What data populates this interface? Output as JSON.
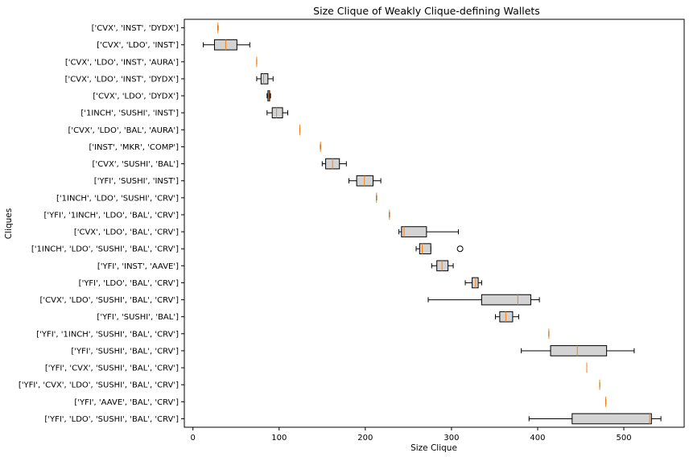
{
  "chart_data": {
    "type": "boxplot",
    "orientation": "horizontal",
    "title": "Size Clique of Weakly Clique-defining Wallets",
    "xlabel": "Size Clique",
    "ylabel": "Cliques",
    "xlim": [
      -10,
      570
    ],
    "xticks": [
      0,
      100,
      200,
      300,
      400,
      500
    ],
    "grid": false,
    "colors": {
      "box_fill": "#d3d3d3",
      "median": "#ff7f0e",
      "whisker": "#000000"
    },
    "categories": [
      "['CVX', 'INST', 'DYDX']",
      "['CVX', 'LDO', 'INST']",
      "['CVX', 'LDO', 'INST', 'AURA']",
      "['CVX', 'LDO', 'INST', 'DYDX']",
      "['CVX', 'LDO', 'DYDX']",
      "['1INCH', 'SUSHI', 'INST']",
      "['CVX', 'LDO', 'BAL', 'AURA']",
      "['INST', 'MKR', 'COMP']",
      "['CVX', 'SUSHI', 'BAL']",
      "['YFI', 'SUSHI', 'INST']",
      "['1INCH', 'LDO', 'SUSHI', 'CRV']",
      "['YFI', '1INCH', 'LDO', 'BAL', 'CRV']",
      "['CVX', 'LDO', 'BAL', 'CRV']",
      "['1INCH', 'LDO', 'SUSHI', 'BAL', 'CRV']",
      "['YFI', 'INST', 'AAVE']",
      "['YFI', 'LDO', 'BAL', 'CRV']",
      "['CVX', 'LDO', 'SUSHI', 'BAL', 'CRV']",
      "['YFI', 'SUSHI', 'BAL']",
      "['YFI', '1INCH', 'SUSHI', 'BAL', 'CRV']",
      "['YFI', 'SUSHI', 'BAL', 'CRV']",
      "['YFI', 'CVX', 'SUSHI', 'BAL', 'CRV']",
      "['YFI', 'CVX', 'LDO', 'SUSHI', 'BAL', 'CRV']",
      "['YFI', 'AAVE', 'BAL', 'CRV']",
      "['YFI', 'LDO', 'SUSHI', 'BAL', 'CRV']"
    ],
    "boxes": [
      {
        "whislo": 29,
        "q1": 29,
        "med": 29,
        "q3": 29,
        "whishi": 29,
        "fliers": []
      },
      {
        "whislo": 12,
        "q1": 25,
        "med": 38,
        "q3": 51,
        "whishi": 66,
        "fliers": []
      },
      {
        "whislo": 74,
        "q1": 74,
        "med": 74,
        "q3": 74,
        "whishi": 74,
        "fliers": []
      },
      {
        "whislo": 74,
        "q1": 79,
        "med": 82,
        "q3": 87,
        "whishi": 93,
        "fliers": []
      },
      {
        "whislo": 86,
        "q1": 87,
        "med": 88,
        "q3": 89,
        "whishi": 90,
        "fliers": []
      },
      {
        "whislo": 86,
        "q1": 92,
        "med": 97,
        "q3": 104,
        "whishi": 110,
        "fliers": []
      },
      {
        "whislo": 124,
        "q1": 124,
        "med": 124,
        "q3": 124,
        "whishi": 124,
        "fliers": []
      },
      {
        "whislo": 148,
        "q1": 148,
        "med": 148,
        "q3": 148,
        "whishi": 148,
        "fliers": []
      },
      {
        "whislo": 150,
        "q1": 154,
        "med": 162,
        "q3": 170,
        "whishi": 178,
        "fliers": []
      },
      {
        "whislo": 181,
        "q1": 190,
        "med": 199,
        "q3": 209,
        "whishi": 218,
        "fliers": []
      },
      {
        "whislo": 213,
        "q1": 213,
        "med": 213,
        "q3": 213,
        "whishi": 213,
        "fliers": []
      },
      {
        "whislo": 228,
        "q1": 228,
        "med": 228,
        "q3": 228,
        "whishi": 228,
        "fliers": []
      },
      {
        "whislo": 239,
        "q1": 242,
        "med": 245,
        "q3": 271,
        "whishi": 308,
        "fliers": []
      },
      {
        "whislo": 259,
        "q1": 263,
        "med": 266,
        "q3": 276,
        "whishi": 276,
        "fliers": [
          310
        ]
      },
      {
        "whislo": 277,
        "q1": 283,
        "med": 289,
        "q3": 296,
        "whishi": 302,
        "fliers": []
      },
      {
        "whislo": 316,
        "q1": 324,
        "med": 328,
        "q3": 331,
        "whishi": 335,
        "fliers": []
      },
      {
        "whislo": 273,
        "q1": 335,
        "med": 377,
        "q3": 392,
        "whishi": 402,
        "fliers": []
      },
      {
        "whislo": 351,
        "q1": 356,
        "med": 363,
        "q3": 371,
        "whishi": 378,
        "fliers": []
      },
      {
        "whislo": 413,
        "q1": 413,
        "med": 413,
        "q3": 413,
        "whishi": 413,
        "fliers": []
      },
      {
        "whislo": 381,
        "q1": 415,
        "med": 446,
        "q3": 480,
        "whishi": 512,
        "fliers": []
      },
      {
        "whislo": 457,
        "q1": 457,
        "med": 457,
        "q3": 457,
        "whishi": 457,
        "fliers": []
      },
      {
        "whislo": 472,
        "q1": 472,
        "med": 472,
        "q3": 472,
        "whishi": 472,
        "fliers": []
      },
      {
        "whislo": 479,
        "q1": 479,
        "med": 479,
        "q3": 479,
        "whishi": 479,
        "fliers": []
      },
      {
        "whislo": 390,
        "q1": 440,
        "med": 530,
        "q3": 532,
        "whishi": 543,
        "fliers": []
      }
    ]
  }
}
